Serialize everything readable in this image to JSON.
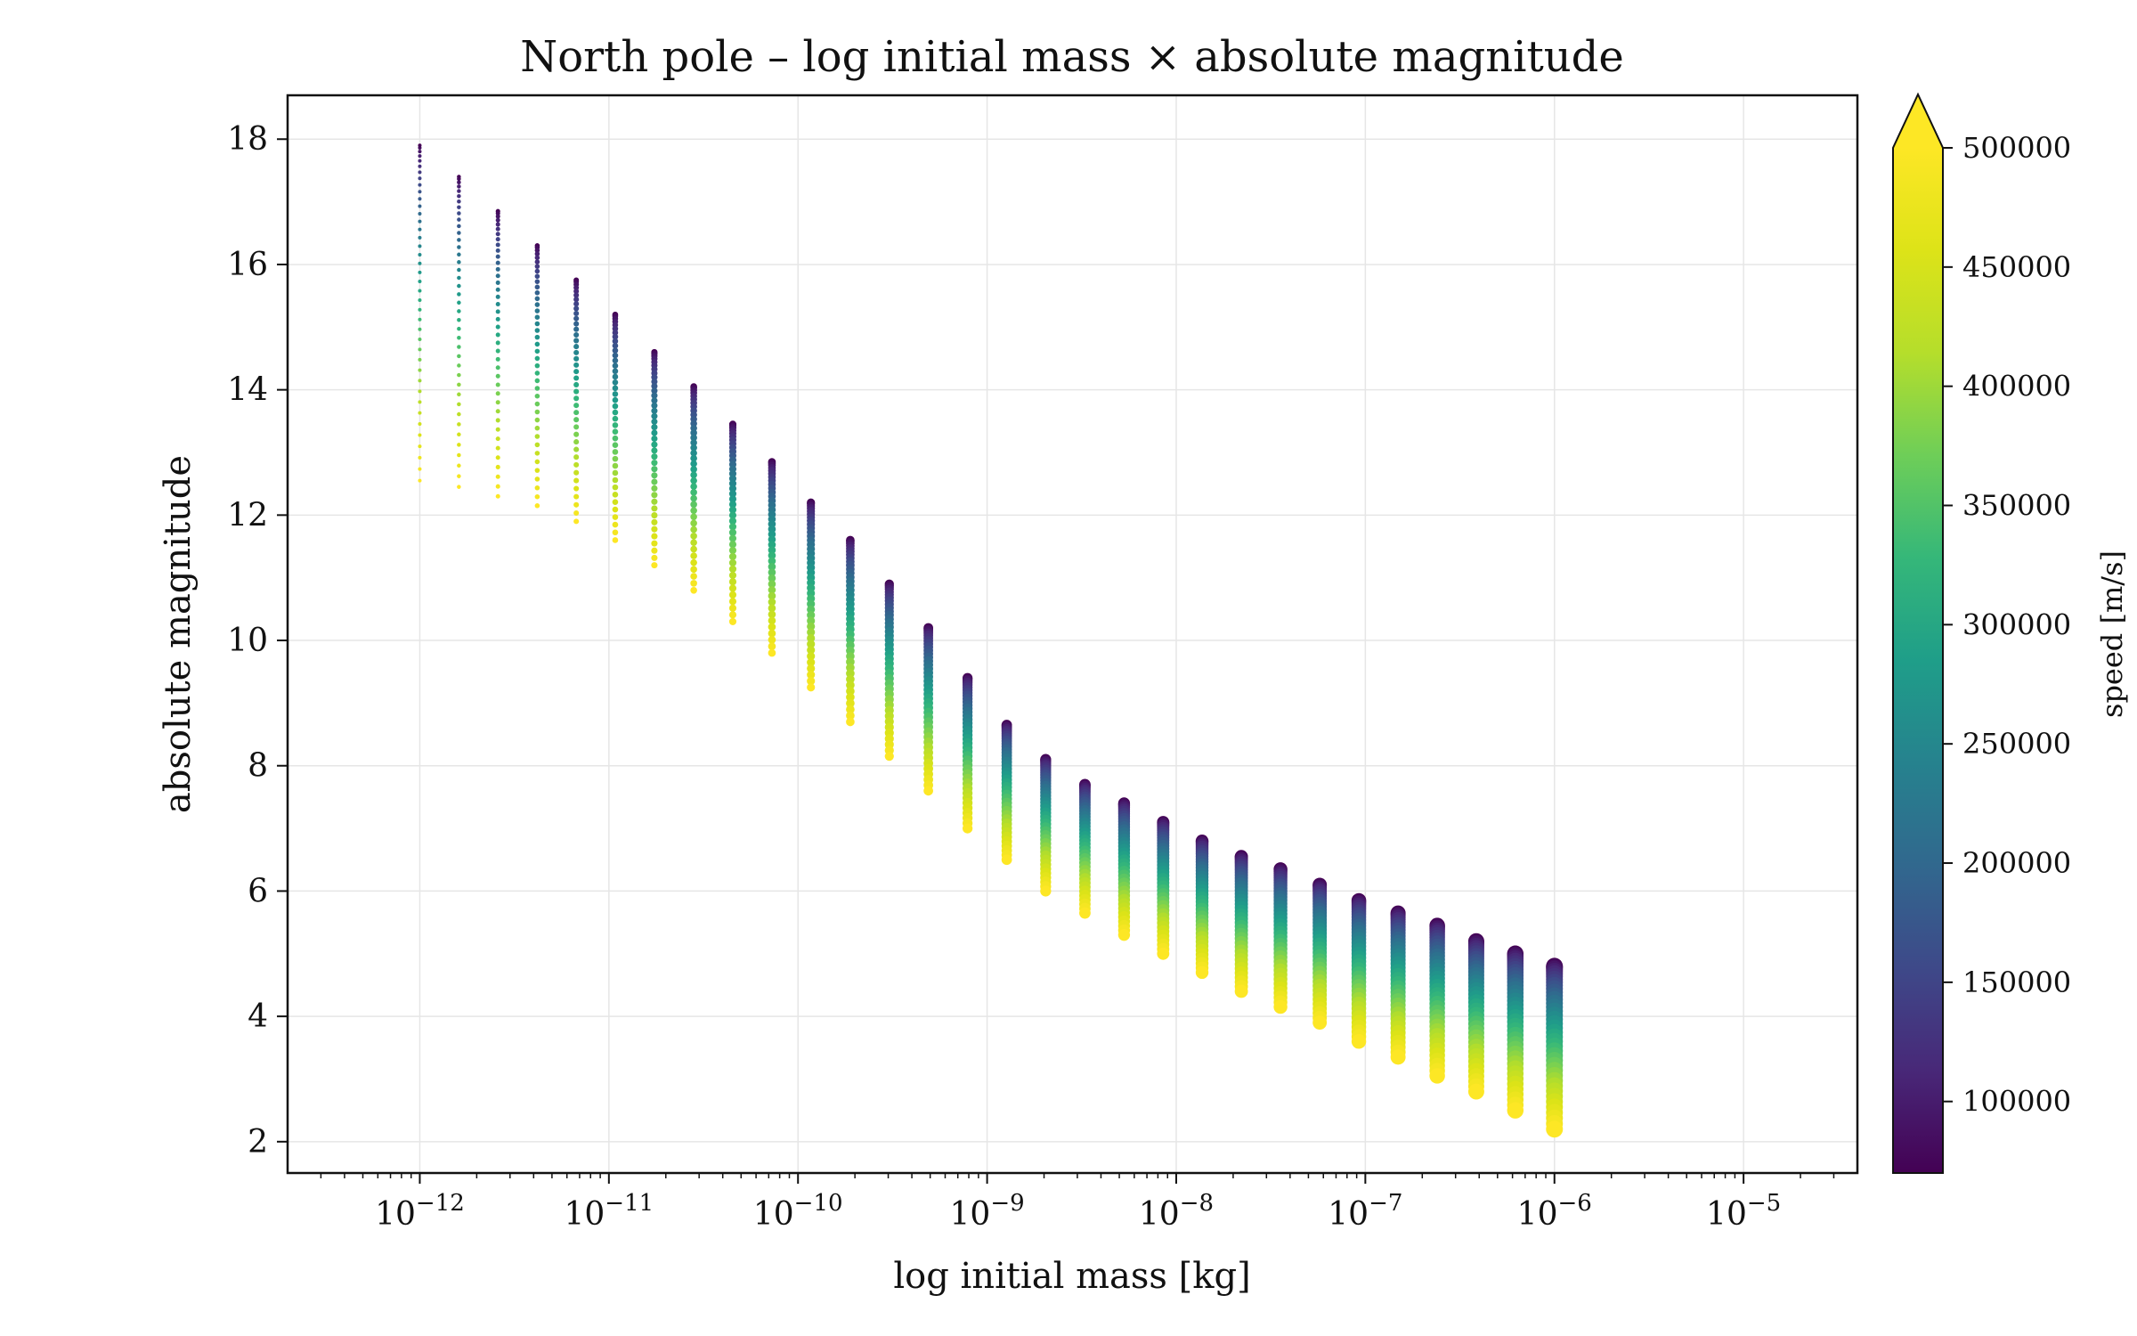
{
  "chart_data": {
    "type": "scatter",
    "title": "North pole – log initial mass × absolute magnitude",
    "xlabel": "log initial mass [kg]",
    "ylabel": "absolute magnitude",
    "x_scale": "log",
    "xlim": [
      2e-13,
      4e-05
    ],
    "ylim": [
      1.5,
      18.7
    ],
    "x_tick_labels": [
      {
        "value": 1e-12,
        "base": "10",
        "exp": "−12"
      },
      {
        "value": 1e-11,
        "base": "10",
        "exp": "−11"
      },
      {
        "value": 1e-10,
        "base": "10",
        "exp": "−10"
      },
      {
        "value": 1e-09,
        "base": "10",
        "exp": "−9"
      },
      {
        "value": 1e-08,
        "base": "10",
        "exp": "−8"
      },
      {
        "value": 1e-07,
        "base": "10",
        "exp": "−7"
      },
      {
        "value": 1e-06,
        "base": "10",
        "exp": "−6"
      },
      {
        "value": 1e-05,
        "base": "10",
        "exp": "−5"
      }
    ],
    "y_ticks": [
      2,
      4,
      6,
      8,
      10,
      12,
      14,
      16,
      18
    ],
    "grid": true,
    "legend": "none",
    "colorbar": {
      "label": "speed [m/s]",
      "colormap": "viridis",
      "range": [
        70000,
        500000
      ],
      "extend": "max",
      "ticks": [
        100000,
        150000,
        200000,
        250000,
        300000,
        350000,
        400000,
        450000,
        500000
      ]
    },
    "mass_min": 1e-12,
    "mass_max": 1e-06,
    "mass_steps": 30,
    "speed_min": 70000,
    "speed_max": 500000,
    "speed_steps": 40,
    "columns": [
      {
        "mass": 1e-12,
        "mag_faint": 17.9,
        "mag_bright": 12.55
      },
      {
        "mass": 1.61e-12,
        "mag_faint": 17.4,
        "mag_bright": 12.45
      },
      {
        "mass": 2.59e-12,
        "mag_faint": 16.85,
        "mag_bright": 12.3
      },
      {
        "mass": 4.18e-12,
        "mag_faint": 16.3,
        "mag_bright": 12.15
      },
      {
        "mass": 6.72e-12,
        "mag_faint": 15.75,
        "mag_bright": 11.9
      },
      {
        "mass": 1.08e-11,
        "mag_faint": 15.2,
        "mag_bright": 11.6
      },
      {
        "mass": 1.74e-11,
        "mag_faint": 14.6,
        "mag_bright": 11.2
      },
      {
        "mass": 2.81e-11,
        "mag_faint": 14.05,
        "mag_bright": 10.8
      },
      {
        "mass": 4.52e-11,
        "mag_faint": 13.45,
        "mag_bright": 10.3
      },
      {
        "mass": 7.28e-11,
        "mag_faint": 12.85,
        "mag_bright": 9.8
      },
      {
        "mass": 1.17e-10,
        "mag_faint": 12.2,
        "mag_bright": 9.25
      },
      {
        "mass": 1.89e-10,
        "mag_faint": 11.6,
        "mag_bright": 8.7
      },
      {
        "mass": 3.04e-10,
        "mag_faint": 10.9,
        "mag_bright": 8.15
      },
      {
        "mass": 4.89e-10,
        "mag_faint": 10.2,
        "mag_bright": 7.6
      },
      {
        "mass": 7.88e-10,
        "mag_faint": 9.4,
        "mag_bright": 7.0
      },
      {
        "mass": 1.27e-09,
        "mag_faint": 8.65,
        "mag_bright": 6.5
      },
      {
        "mass": 2.04e-09,
        "mag_faint": 8.1,
        "mag_bright": 6.0
      },
      {
        "mass": 3.29e-09,
        "mag_faint": 7.7,
        "mag_bright": 5.65
      },
      {
        "mass": 5.3e-09,
        "mag_faint": 7.4,
        "mag_bright": 5.3
      },
      {
        "mass": 8.53e-09,
        "mag_faint": 7.1,
        "mag_bright": 5.0
      },
      {
        "mass": 1.37e-08,
        "mag_faint": 6.8,
        "mag_bright": 4.7
      },
      {
        "mass": 2.21e-08,
        "mag_faint": 6.55,
        "mag_bright": 4.4
      },
      {
        "mass": 3.56e-08,
        "mag_faint": 6.35,
        "mag_bright": 4.15
      },
      {
        "mass": 5.74e-08,
        "mag_faint": 6.1,
        "mag_bright": 3.9
      },
      {
        "mass": 9.24e-08,
        "mag_faint": 5.85,
        "mag_bright": 3.6
      },
      {
        "mass": 1.49e-07,
        "mag_faint": 5.65,
        "mag_bright": 3.35
      },
      {
        "mass": 2.4e-07,
        "mag_faint": 5.45,
        "mag_bright": 3.05
      },
      {
        "mass": 3.86e-07,
        "mag_faint": 5.2,
        "mag_bright": 2.8
      },
      {
        "mass": 6.21e-07,
        "mag_faint": 5.0,
        "mag_bright": 2.5
      },
      {
        "mass": 1e-06,
        "mag_faint": 4.8,
        "mag_bright": 2.2
      }
    ]
  }
}
